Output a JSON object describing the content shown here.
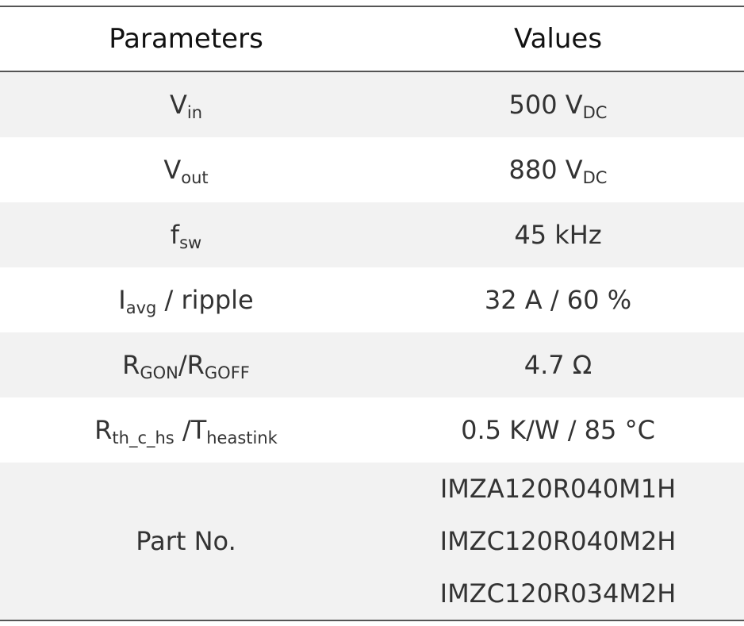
{
  "table": {
    "header": [
      "Parameters",
      "Values"
    ],
    "rows": [
      {
        "parameter": [
          [
            {
              "text": "V"
            },
            {
              "text": "in",
              "sub": true
            }
          ]
        ],
        "value": [
          [
            {
              "text": "500 V"
            },
            {
              "text": "DC",
              "sub": true
            }
          ]
        ]
      },
      {
        "parameter": [
          [
            {
              "text": "V"
            },
            {
              "text": "out",
              "sub": true
            }
          ]
        ],
        "value": [
          [
            {
              "text": "880 V"
            },
            {
              "text": "DC",
              "sub": true
            }
          ]
        ]
      },
      {
        "parameter": [
          [
            {
              "text": "f"
            },
            {
              "text": "sw",
              "sub": true
            }
          ]
        ],
        "value": [
          [
            {
              "text": "45 kHz"
            }
          ]
        ]
      },
      {
        "parameter": [
          [
            {
              "text": "I"
            },
            {
              "text": "avg",
              "sub": true
            },
            {
              "text": " / ripple"
            }
          ]
        ],
        "value": [
          [
            {
              "text": "32 A / 60 %"
            }
          ]
        ]
      },
      {
        "parameter": [
          [
            {
              "text": "R"
            },
            {
              "text": "GON",
              "sub": true
            },
            {
              "text": "/R"
            },
            {
              "text": "GOFF",
              "sub": true
            }
          ]
        ],
        "value": [
          [
            {
              "text": "4.7 Ω"
            }
          ]
        ]
      },
      {
        "parameter": [
          [
            {
              "text": "R"
            },
            {
              "text": "th_c_hs",
              "sub": true
            },
            {
              "text": " /T"
            },
            {
              "text": "heastink",
              "sub": true
            }
          ]
        ],
        "value": [
          [
            {
              "text": "0.5 K/W / 85 °C"
            }
          ]
        ]
      },
      {
        "parameter": [
          [
            {
              "text": "Part No."
            }
          ]
        ],
        "value": [
          [
            {
              "text": "IMZA120R040M1H"
            }
          ],
          [
            {
              "text": "IMZC120R040M2H"
            }
          ],
          [
            {
              "text": "IMZC120R034M2H"
            }
          ]
        ]
      }
    ]
  }
}
